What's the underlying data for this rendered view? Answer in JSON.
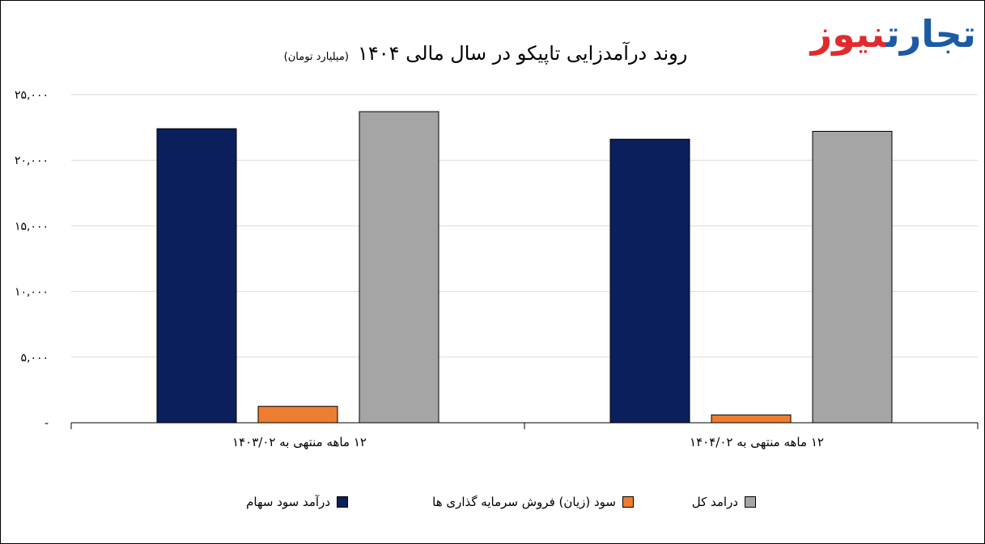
{
  "logo": {
    "part1": "تجارت",
    "part2": "نیوز"
  },
  "chart_data": {
    "type": "bar",
    "title": "روند درآمدزایی تاپیکو در سال مالی ۱۴۰۴",
    "subtitle": "(میلیارد تومان)",
    "categories": [
      "۱۲ ماهه منتهی به ۱۴۰۳/۰۲",
      "۱۲ ماهه منتهی به ۱۴۰۴/۰۲"
    ],
    "series": [
      {
        "name": "درآمد سود سهام",
        "color": "#0b1f5c",
        "values": [
          22400,
          21600
        ]
      },
      {
        "name": "سود (زیان) فروش سرمایه گذاری ها",
        "color": "#ed7d31",
        "values": [
          1250,
          600
        ]
      },
      {
        "name": "درامد کل",
        "color": "#a5a5a5",
        "values": [
          23700,
          22200
        ]
      }
    ],
    "ylim": [
      0,
      25000
    ],
    "yticks": [
      0,
      5000,
      10000,
      15000,
      20000,
      25000
    ],
    "ytick_labels": [
      "-",
      "۵,۰۰۰",
      "۱۰,۰۰۰",
      "۱۵,۰۰۰",
      "۲۰,۰۰۰",
      "۲۵,۰۰۰"
    ],
    "grid": true,
    "legend_position": "bottom"
  }
}
